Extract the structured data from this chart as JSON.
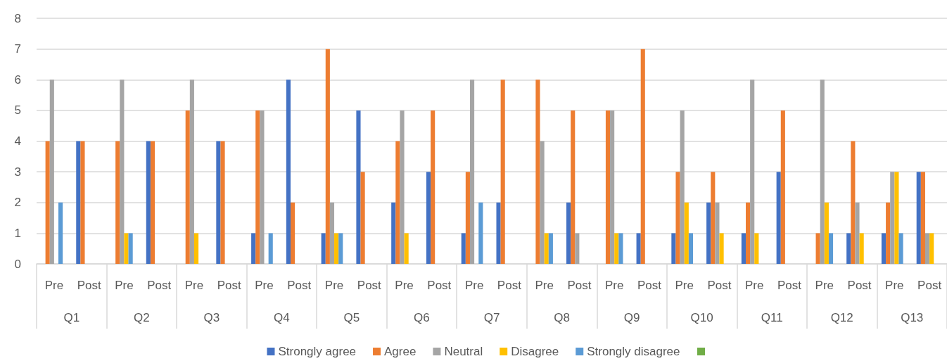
{
  "chart_data": {
    "type": "bar",
    "categories": [
      "Pre",
      "Post",
      "Pre",
      "Post",
      "Pre",
      "Post",
      "Pre",
      "Post",
      "Pre",
      "Post",
      "Pre",
      "Post",
      "Pre",
      "Post",
      "Pre",
      "Post",
      "Pre",
      "Post",
      "Pre",
      "Post",
      "Pre",
      "Post",
      "Pre",
      "Post",
      "Pre",
      "Post"
    ],
    "annotations": [
      "Q1",
      "Q2",
      "Q3",
      "Q4",
      "Q5",
      "Q6",
      "Q7",
      "Q8",
      "Q9",
      "Q10",
      "Q11",
      "Q12",
      "Q13"
    ],
    "series": [
      {
        "name": "Strongly agree",
        "color": "#4472c4",
        "values": [
          0,
          4,
          0,
          4,
          0,
          4,
          1,
          6,
          1,
          5,
          2,
          3,
          1,
          2,
          0,
          2,
          0,
          1,
          1,
          2,
          1,
          3,
          0,
          1,
          1,
          3
        ]
      },
      {
        "name": "Agree",
        "color": "#ed7d31",
        "values": [
          4,
          4,
          4,
          4,
          5,
          4,
          5,
          2,
          7,
          3,
          4,
          5,
          3,
          6,
          6,
          5,
          5,
          7,
          3,
          3,
          2,
          5,
          1,
          4,
          2,
          3
        ]
      },
      {
        "name": "Neutral",
        "color": "#a5a5a5",
        "values": [
          6,
          0,
          6,
          0,
          6,
          0,
          5,
          0,
          2,
          0,
          5,
          0,
          6,
          0,
          4,
          1,
          5,
          0,
          5,
          2,
          6,
          0,
          6,
          2,
          3,
          1
        ]
      },
      {
        "name": "Disagree",
        "color": "#ffc000",
        "values": [
          0,
          0,
          1,
          0,
          1,
          0,
          0,
          0,
          1,
          0,
          1,
          0,
          0,
          0,
          1,
          0,
          1,
          0,
          2,
          1,
          1,
          0,
          2,
          1,
          3,
          1
        ]
      },
      {
        "name": "Strongly disagree",
        "color": "#5b9bd5",
        "values": [
          2,
          0,
          1,
          0,
          0,
          0,
          1,
          0,
          1,
          0,
          0,
          0,
          2,
          0,
          1,
          0,
          1,
          0,
          1,
          0,
          0,
          0,
          1,
          0,
          1,
          0
        ]
      },
      {
        "color": "#70ad47",
        "values": [
          null,
          null,
          null,
          null,
          null,
          null,
          null,
          null,
          null,
          null,
          null,
          null,
          null,
          null,
          null,
          null,
          null,
          null,
          null,
          null,
          null,
          null,
          null,
          null,
          null,
          null
        ]
      }
    ],
    "ylim": [
      0,
      8
    ],
    "yticks": [
      0,
      1,
      2,
      3,
      4,
      5,
      6,
      7,
      8
    ],
    "grid": "y",
    "legend": "bottom"
  }
}
